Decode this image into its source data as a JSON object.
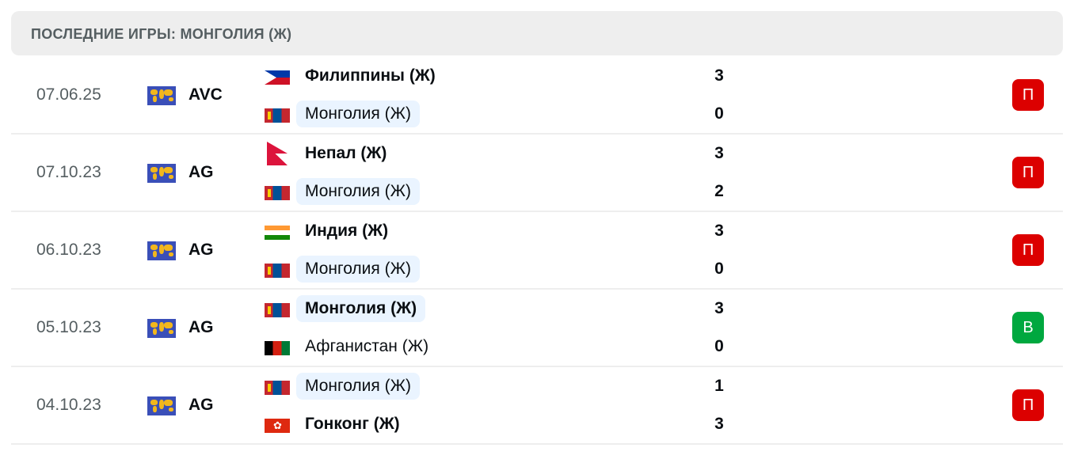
{
  "header": {
    "title": "ПОСЛЕДНИЕ ИГРЫ: МОНГОЛИЯ (Ж)"
  },
  "colors": {
    "loss": "#dc0000",
    "win": "#00a83f",
    "highlight": "#eaf4ff"
  },
  "matches": [
    {
      "date": "07.06.25",
      "competition": "AVC",
      "competition_icon": "world-map-icon",
      "result": "П",
      "result_type": "loss",
      "teams": [
        {
          "name": "Филиппины (Ж)",
          "flag": "ph",
          "score": "3",
          "winner": true,
          "highlight": false
        },
        {
          "name": "Монголия (Ж)",
          "flag": "mn",
          "score": "0",
          "winner": false,
          "highlight": true
        }
      ]
    },
    {
      "date": "07.10.23",
      "competition": "AG",
      "competition_icon": "world-map-icon",
      "result": "П",
      "result_type": "loss",
      "teams": [
        {
          "name": "Непал (Ж)",
          "flag": "np",
          "score": "3",
          "winner": true,
          "highlight": false
        },
        {
          "name": "Монголия (Ж)",
          "flag": "mn",
          "score": "2",
          "winner": false,
          "highlight": true
        }
      ]
    },
    {
      "date": "06.10.23",
      "competition": "AG",
      "competition_icon": "world-map-icon",
      "result": "П",
      "result_type": "loss",
      "teams": [
        {
          "name": "Индия (Ж)",
          "flag": "in",
          "score": "3",
          "winner": true,
          "highlight": false
        },
        {
          "name": "Монголия (Ж)",
          "flag": "mn",
          "score": "0",
          "winner": false,
          "highlight": true
        }
      ]
    },
    {
      "date": "05.10.23",
      "competition": "AG",
      "competition_icon": "world-map-icon",
      "result": "В",
      "result_type": "win",
      "teams": [
        {
          "name": "Монголия (Ж)",
          "flag": "mn",
          "score": "3",
          "winner": true,
          "highlight": true
        },
        {
          "name": "Афганистан (Ж)",
          "flag": "af",
          "score": "0",
          "winner": false,
          "highlight": false
        }
      ]
    },
    {
      "date": "04.10.23",
      "competition": "AG",
      "competition_icon": "world-map-icon",
      "result": "П",
      "result_type": "loss",
      "teams": [
        {
          "name": "Монголия (Ж)",
          "flag": "mn",
          "score": "1",
          "winner": false,
          "highlight": true
        },
        {
          "name": "Гонконг (Ж)",
          "flag": "hk",
          "score": "3",
          "winner": true,
          "highlight": false
        }
      ]
    }
  ]
}
